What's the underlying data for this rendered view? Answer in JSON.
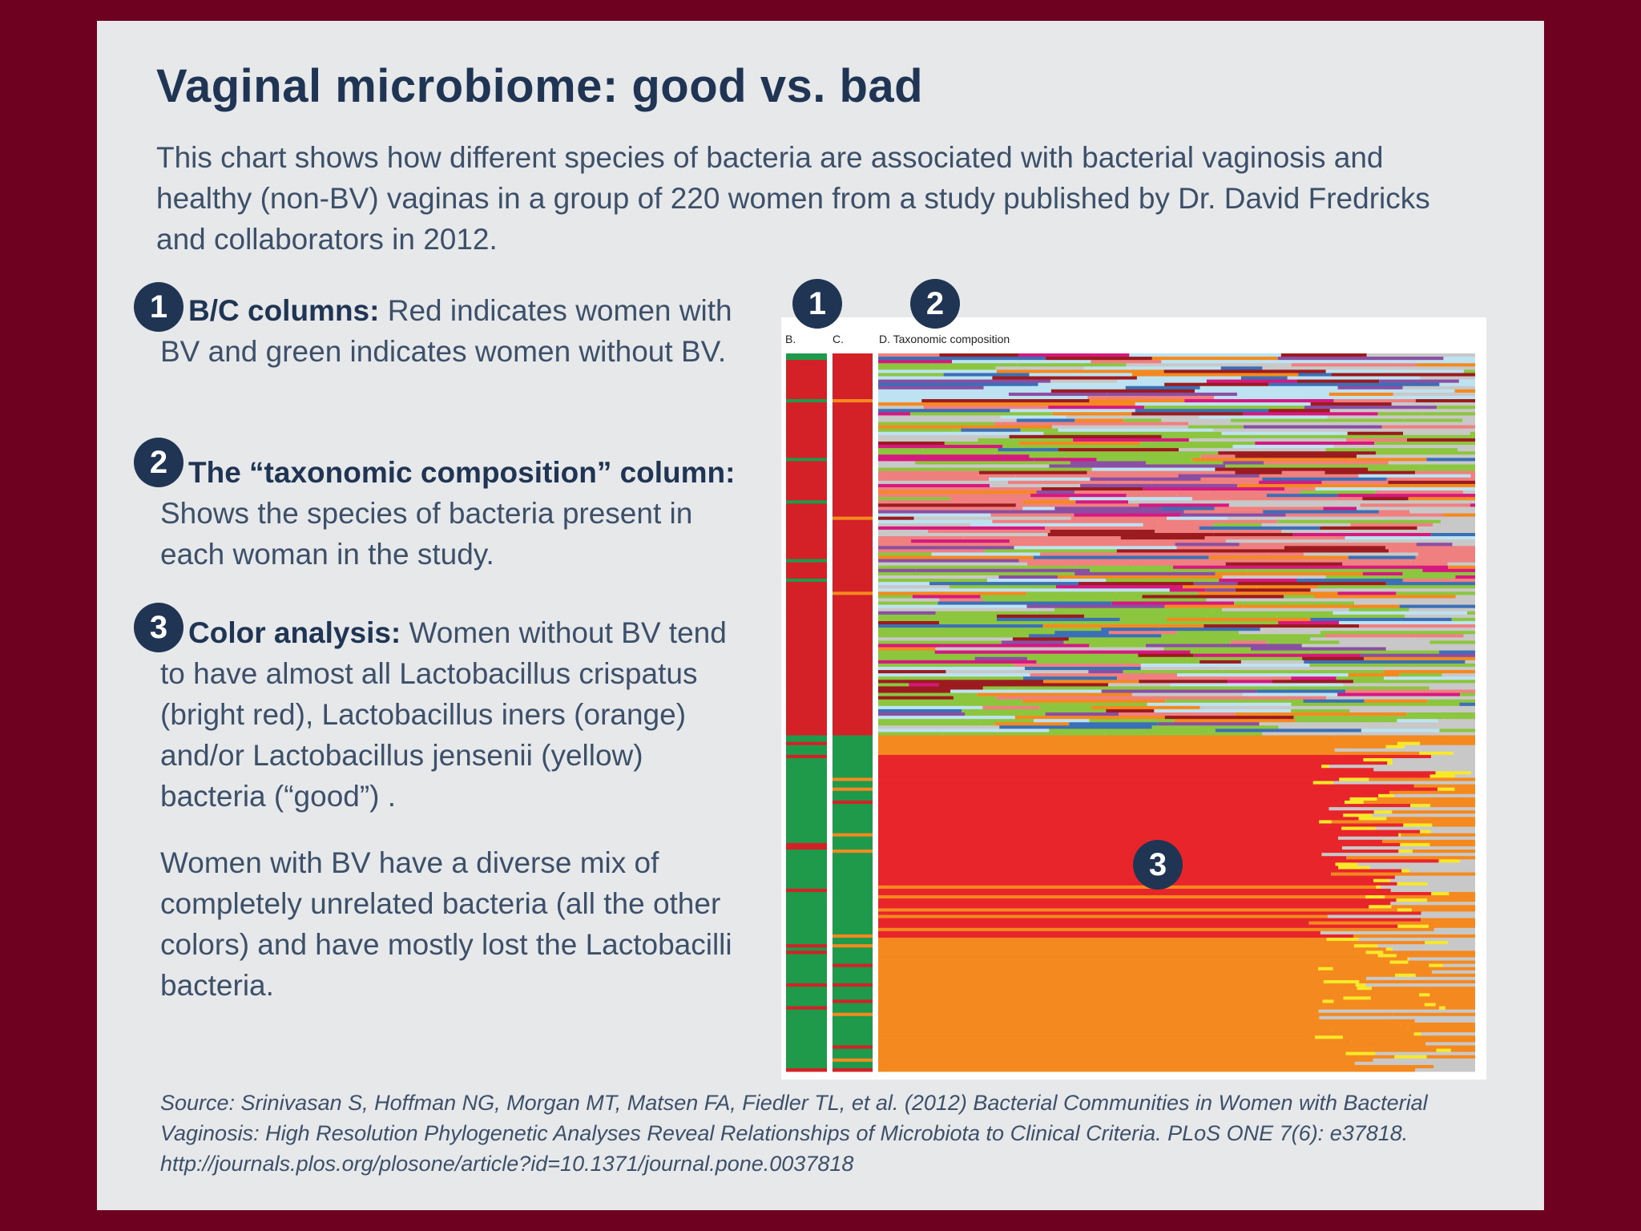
{
  "title": "Vaginal microbiome: good vs. bad",
  "intro": "This chart shows how different species of bacteria are associated with bacterial vaginosis and healthy (non-BV) vaginas in a group of 220 women from a study published by Dr. David Fredricks and collaborators in 2012.",
  "points": [
    {
      "number": "1",
      "heading": "B/C columns:",
      "text": "Red indicates women with BV and green indicates women without BV."
    },
    {
      "number": "2",
      "heading": "The “taxonomic composition” column:",
      "text": "Shows the species of bacteria present in each woman in the study."
    },
    {
      "number": "3",
      "heading": "Color analysis:",
      "text": "Women without BV tend to have almost all Lactobacillus crispatus (bright red), Lactobacillus iners (orange) and/or Lactobacillus jensenii (yellow) bacteria (“good”) ."
    },
    {
      "number": "",
      "heading": "",
      "text": "Women with BV have a diverse mix of completely unrelated bacteria (all the other colors) and have mostly lost the Lactobacilli bacteria."
    }
  ],
  "figure_badges": [
    "1",
    "2",
    "3"
  ],
  "source": "Source: Srinivasan S, Hoffman NG, Morgan MT, Matsen FA, Fiedler TL, et al. (2012) Bacterial Communities in Women with Bacterial Vaginosis: High Resolution Phylogenetic Analyses Reveal Relationships of Microbiota to Clinical Criteria. PLoS ONE 7(6): e37818. http://journals.plos.org/plosone/article?id=10.1371/journal.pone.0037818",
  "chart_data": {
    "type": "heatmap",
    "title": "",
    "column_labels": [
      "B.",
      "C.",
      "D. Taxonomic composition"
    ],
    "n_women": 220,
    "colors": {
      "bv": "#d42027",
      "non_bv": "#1e9a4a",
      "L_crispatus": "#e8252b",
      "L_iners": "#f4891f",
      "L_jensenii": "#f7e92a",
      "other_light_blue": "#bde3f2",
      "other_blue": "#3b6fb6",
      "other_green": "#8cc63f",
      "other_purple": "#8a4fa3",
      "other_pink": "#f08080",
      "other_magenta": "#d6197f",
      "other_darkred": "#9b1b1e",
      "other_grey": "#c8c8c8"
    },
    "groups": [
      {
        "name": "BV",
        "women_fraction": 0.53,
        "dominant": "diverse mix"
      },
      {
        "name": "non-BV",
        "women_fraction": 0.47,
        "dominant": "Lactobacillus crispatus / iners / jensenii"
      }
    ]
  }
}
